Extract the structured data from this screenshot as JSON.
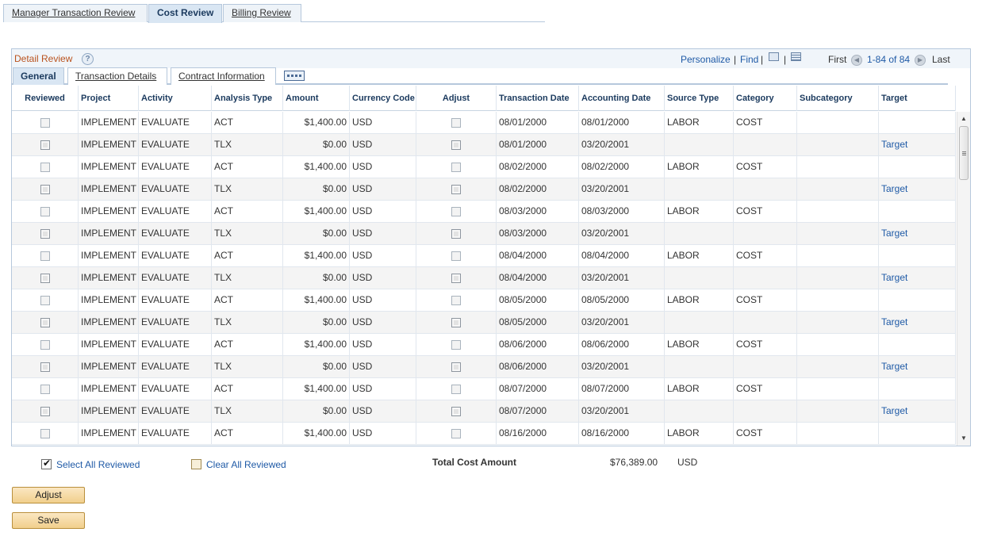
{
  "page_tabs": [
    {
      "label": "Manager Transaction Review",
      "active": false
    },
    {
      "label": "Cost Review",
      "active": true
    },
    {
      "label": "Billing Review",
      "active": false
    }
  ],
  "grid": {
    "title": "Detail Review",
    "help_icon": "help-icon",
    "personalize_label": "Personalize",
    "find_label": "Find",
    "view_all_icon": "view-all-icon",
    "download_icon": "spreadsheet-icon",
    "first_label": "First",
    "range_label": "1-84 of 84",
    "last_label": "Last",
    "sub_tabs": [
      {
        "label": "General",
        "active": true
      },
      {
        "label": "Transaction Details",
        "active": false
      },
      {
        "label": "Contract Information",
        "active": false
      }
    ],
    "show_all_columns_icon": "show-all-columns-icon",
    "columns": [
      "Reviewed",
      "Project",
      "Activity",
      "Analysis Type",
      "Amount",
      "Currency Code",
      "Adjust",
      "Transaction Date",
      "Accounting Date",
      "Source Type",
      "Category",
      "Subcategory",
      "Target"
    ],
    "rows": [
      {
        "project": "IMPLEMENT",
        "activity": "EVALUATE",
        "analysis_type": "ACT",
        "amount": "$1,400.00",
        "currency": "USD",
        "transaction_date": "08/01/2000",
        "accounting_date": "08/01/2000",
        "source_type": "LABOR",
        "category": "COST",
        "subcategory": "",
        "target": ""
      },
      {
        "project": "IMPLEMENT",
        "activity": "EVALUATE",
        "analysis_type": "TLX",
        "amount": "$0.00",
        "currency": "USD",
        "transaction_date": "08/01/2000",
        "accounting_date": "03/20/2001",
        "source_type": "",
        "category": "",
        "subcategory": "",
        "target": "Target"
      },
      {
        "project": "IMPLEMENT",
        "activity": "EVALUATE",
        "analysis_type": "ACT",
        "amount": "$1,400.00",
        "currency": "USD",
        "transaction_date": "08/02/2000",
        "accounting_date": "08/02/2000",
        "source_type": "LABOR",
        "category": "COST",
        "subcategory": "",
        "target": ""
      },
      {
        "project": "IMPLEMENT",
        "activity": "EVALUATE",
        "analysis_type": "TLX",
        "amount": "$0.00",
        "currency": "USD",
        "transaction_date": "08/02/2000",
        "accounting_date": "03/20/2001",
        "source_type": "",
        "category": "",
        "subcategory": "",
        "target": "Target"
      },
      {
        "project": "IMPLEMENT",
        "activity": "EVALUATE",
        "analysis_type": "ACT",
        "amount": "$1,400.00",
        "currency": "USD",
        "transaction_date": "08/03/2000",
        "accounting_date": "08/03/2000",
        "source_type": "LABOR",
        "category": "COST",
        "subcategory": "",
        "target": ""
      },
      {
        "project": "IMPLEMENT",
        "activity": "EVALUATE",
        "analysis_type": "TLX",
        "amount": "$0.00",
        "currency": "USD",
        "transaction_date": "08/03/2000",
        "accounting_date": "03/20/2001",
        "source_type": "",
        "category": "",
        "subcategory": "",
        "target": "Target"
      },
      {
        "project": "IMPLEMENT",
        "activity": "EVALUATE",
        "analysis_type": "ACT",
        "amount": "$1,400.00",
        "currency": "USD",
        "transaction_date": "08/04/2000",
        "accounting_date": "08/04/2000",
        "source_type": "LABOR",
        "category": "COST",
        "subcategory": "",
        "target": ""
      },
      {
        "project": "IMPLEMENT",
        "activity": "EVALUATE",
        "analysis_type": "TLX",
        "amount": "$0.00",
        "currency": "USD",
        "transaction_date": "08/04/2000",
        "accounting_date": "03/20/2001",
        "source_type": "",
        "category": "",
        "subcategory": "",
        "target": "Target"
      },
      {
        "project": "IMPLEMENT",
        "activity": "EVALUATE",
        "analysis_type": "ACT",
        "amount": "$1,400.00",
        "currency": "USD",
        "transaction_date": "08/05/2000",
        "accounting_date": "08/05/2000",
        "source_type": "LABOR",
        "category": "COST",
        "subcategory": "",
        "target": ""
      },
      {
        "project": "IMPLEMENT",
        "activity": "EVALUATE",
        "analysis_type": "TLX",
        "amount": "$0.00",
        "currency": "USD",
        "transaction_date": "08/05/2000",
        "accounting_date": "03/20/2001",
        "source_type": "",
        "category": "",
        "subcategory": "",
        "target": "Target"
      },
      {
        "project": "IMPLEMENT",
        "activity": "EVALUATE",
        "analysis_type": "ACT",
        "amount": "$1,400.00",
        "currency": "USD",
        "transaction_date": "08/06/2000",
        "accounting_date": "08/06/2000",
        "source_type": "LABOR",
        "category": "COST",
        "subcategory": "",
        "target": ""
      },
      {
        "project": "IMPLEMENT",
        "activity": "EVALUATE",
        "analysis_type": "TLX",
        "amount": "$0.00",
        "currency": "USD",
        "transaction_date": "08/06/2000",
        "accounting_date": "03/20/2001",
        "source_type": "",
        "category": "",
        "subcategory": "",
        "target": "Target"
      },
      {
        "project": "IMPLEMENT",
        "activity": "EVALUATE",
        "analysis_type": "ACT",
        "amount": "$1,400.00",
        "currency": "USD",
        "transaction_date": "08/07/2000",
        "accounting_date": "08/07/2000",
        "source_type": "LABOR",
        "category": "COST",
        "subcategory": "",
        "target": ""
      },
      {
        "project": "IMPLEMENT",
        "activity": "EVALUATE",
        "analysis_type": "TLX",
        "amount": "$0.00",
        "currency": "USD",
        "transaction_date": "08/07/2000",
        "accounting_date": "03/20/2001",
        "source_type": "",
        "category": "",
        "subcategory": "",
        "target": "Target"
      },
      {
        "project": "IMPLEMENT",
        "activity": "EVALUATE",
        "analysis_type": "ACT",
        "amount": "$1,400.00",
        "currency": "USD",
        "transaction_date": "08/16/2000",
        "accounting_date": "08/16/2000",
        "source_type": "LABOR",
        "category": "COST",
        "subcategory": "",
        "target": ""
      }
    ]
  },
  "footer": {
    "select_all_label": "Select All Reviewed",
    "select_all_checked": true,
    "clear_all_label": "Clear All Reviewed",
    "clear_all_checked": false,
    "total_label": "Total Cost Amount",
    "total_amount": "$76,389.00",
    "total_currency": "USD"
  },
  "buttons": {
    "adjust_label": "Adjust",
    "save_label": "Save"
  },
  "colors": {
    "link": "#1f5aa6",
    "grid_title": "#b9521e",
    "button_bg": "#f1cf8c"
  }
}
